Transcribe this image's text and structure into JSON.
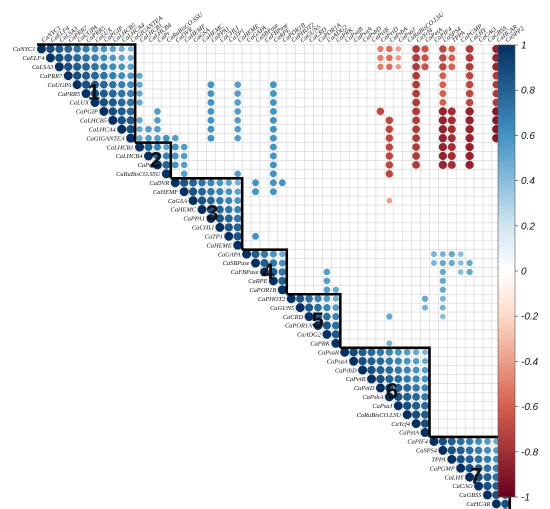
{
  "chart_data": {
    "type": "heatmap",
    "title": "",
    "xlabel": "",
    "ylabel": "",
    "genes": [
      "CaNYC1",
      "CaELF4",
      "CaLSA3",
      "CaPRR7",
      "CaUGPA",
      "CaPRR5",
      "CaLUX",
      "CaPGIP",
      "CaLHCB5",
      "CaLHCA4",
      "CaGIGANTEA",
      "CaLHCB1",
      "CaLHCB4",
      "CaPr",
      "CaRuBisCO.SSU",
      "CaDVR",
      "CaHEMF",
      "CaGSA",
      "CaHEMC",
      "CaPPA1",
      "CaCHLI",
      "CaTP1",
      "CaHEME",
      "CaGAPA",
      "CaSBPase",
      "CaFBPase",
      "CaRPE",
      "CaPOR1B",
      "CaPHOT2",
      "CaGUN5",
      "CaCRD",
      "CaPOR1A",
      "CaADG2",
      "CaPRK",
      "CaPsaB",
      "CaPsaA",
      "CaPsbD",
      "CaPetB",
      "CaPetD",
      "CaPsbA",
      "CaPsaJ",
      "CaRuBisCO.LSU",
      "CaYcf4",
      "CaPetA",
      "CaPIF4",
      "CaSPS4",
      "TPPA",
      "CaPGMP",
      "CaLHY",
      "CaCAO",
      "CaGBSS",
      "CaHCAR",
      "CaSPP2"
    ],
    "modules": [
      {
        "label": "1",
        "start": 1,
        "end": 11
      },
      {
        "label": "2",
        "start": 12,
        "end": 15
      },
      {
        "label": "3",
        "start": 16,
        "end": 23
      },
      {
        "label": "4",
        "start": 24,
        "end": 28
      },
      {
        "label": "5",
        "start": 29,
        "end": 34
      },
      {
        "label": "6",
        "start": 35,
        "end": 44
      },
      {
        "label": "7",
        "start": 45,
        "end": 53
      }
    ],
    "sparse_correlations": [
      [
        1,
        39,
        -0.5
      ],
      [
        1,
        40,
        -0.55
      ],
      [
        1,
        41,
        -0.4
      ],
      [
        1,
        43,
        -0.75
      ],
      [
        1,
        44,
        -0.65
      ],
      [
        1,
        46,
        -0.7
      ],
      [
        1,
        47,
        -0.6
      ],
      [
        1,
        49,
        -0.75
      ],
      [
        1,
        52,
        -0.85
      ],
      [
        2,
        39,
        -0.5
      ],
      [
        2,
        40,
        -0.55
      ],
      [
        2,
        41,
        -0.4
      ],
      [
        2,
        43,
        -0.75
      ],
      [
        2,
        44,
        -0.65
      ],
      [
        2,
        46,
        -0.7
      ],
      [
        2,
        47,
        -0.6
      ],
      [
        2,
        49,
        -0.75
      ],
      [
        2,
        52,
        -0.85
      ],
      [
        3,
        39,
        -0.5
      ],
      [
        3,
        40,
        -0.55
      ],
      [
        3,
        41,
        -0.4
      ],
      [
        3,
        43,
        -0.75
      ],
      [
        3,
        44,
        -0.65
      ],
      [
        3,
        46,
        -0.7
      ],
      [
        3,
        47,
        -0.6
      ],
      [
        3,
        49,
        -0.75
      ],
      [
        3,
        52,
        -0.85
      ],
      [
        4,
        12,
        0.5
      ],
      [
        4,
        43,
        -0.75
      ],
      [
        4,
        46,
        -0.6
      ],
      [
        4,
        49,
        -0.7
      ],
      [
        4,
        52,
        -0.75
      ],
      [
        5,
        12,
        0.5
      ],
      [
        5,
        20,
        0.6
      ],
      [
        5,
        23,
        0.55
      ],
      [
        5,
        27,
        0.6
      ],
      [
        5,
        43,
        -0.75
      ],
      [
        5,
        46,
        -0.6
      ],
      [
        5,
        49,
        -0.7
      ],
      [
        5,
        52,
        -0.75
      ],
      [
        6,
        12,
        0.5
      ],
      [
        6,
        20,
        0.6
      ],
      [
        6,
        23,
        0.55
      ],
      [
        6,
        27,
        0.6
      ],
      [
        6,
        43,
        -0.75
      ],
      [
        6,
        46,
        -0.6
      ],
      [
        6,
        49,
        -0.7
      ],
      [
        6,
        52,
        -0.75
      ],
      [
        7,
        12,
        0.5
      ],
      [
        7,
        20,
        0.6
      ],
      [
        7,
        23,
        0.55
      ],
      [
        7,
        27,
        0.6
      ],
      [
        7,
        43,
        -0.75
      ],
      [
        7,
        46,
        -0.6
      ],
      [
        7,
        49,
        -0.7
      ],
      [
        7,
        52,
        -0.75
      ],
      [
        8,
        14,
        0.55
      ],
      [
        8,
        20,
        0.6
      ],
      [
        8,
        23,
        0.55
      ],
      [
        8,
        27,
        0.6
      ],
      [
        8,
        39,
        -0.7
      ],
      [
        8,
        43,
        -0.75
      ],
      [
        8,
        46,
        -0.85
      ],
      [
        8,
        47,
        -0.8
      ],
      [
        8,
        49,
        -0.85
      ],
      [
        8,
        52,
        -0.9
      ],
      [
        9,
        12,
        0.5
      ],
      [
        9,
        14,
        0.55
      ],
      [
        9,
        20,
        0.6
      ],
      [
        9,
        23,
        0.55
      ],
      [
        9,
        27,
        0.6
      ],
      [
        9,
        40,
        -0.7
      ],
      [
        9,
        43,
        -0.75
      ],
      [
        9,
        46,
        -0.85
      ],
      [
        9,
        47,
        -0.8
      ],
      [
        9,
        49,
        -0.85
      ],
      [
        9,
        52,
        -0.9
      ],
      [
        10,
        12,
        0.5
      ],
      [
        10,
        13,
        0.55
      ],
      [
        10,
        14,
        0.55
      ],
      [
        10,
        20,
        0.6
      ],
      [
        10,
        23,
        0.55
      ],
      [
        10,
        27,
        0.6
      ],
      [
        10,
        40,
        -0.7
      ],
      [
        10,
        43,
        -0.75
      ],
      [
        10,
        46,
        -0.85
      ],
      [
        10,
        47,
        -0.8
      ],
      [
        10,
        49,
        -0.85
      ],
      [
        10,
        52,
        -0.9
      ],
      [
        11,
        12,
        0.5
      ],
      [
        11,
        13,
        0.55
      ],
      [
        11,
        14,
        0.55
      ],
      [
        11,
        15,
        0.6
      ],
      [
        11,
        16,
        0.55
      ],
      [
        11,
        20,
        0.6
      ],
      [
        11,
        23,
        0.55
      ],
      [
        11,
        27,
        0.6
      ],
      [
        11,
        40,
        -0.7
      ],
      [
        11,
        43,
        -0.75
      ],
      [
        11,
        46,
        -0.85
      ],
      [
        11,
        47,
        -0.8
      ],
      [
        11,
        49,
        -0.85
      ],
      [
        11,
        52,
        -0.9
      ],
      [
        12,
        16,
        0.6
      ],
      [
        12,
        17,
        0.55
      ],
      [
        12,
        27,
        0.6
      ],
      [
        12,
        40,
        -0.7
      ],
      [
        12,
        43,
        -0.75
      ],
      [
        12,
        46,
        -0.85
      ],
      [
        12,
        47,
        -0.8
      ],
      [
        12,
        49,
        -0.85
      ],
      [
        13,
        16,
        0.6
      ],
      [
        13,
        17,
        0.55
      ],
      [
        13,
        27,
        0.6
      ],
      [
        13,
        40,
        -0.7
      ],
      [
        13,
        43,
        -0.75
      ],
      [
        13,
        46,
        -0.85
      ],
      [
        13,
        47,
        -0.8
      ],
      [
        13,
        49,
        -0.85
      ],
      [
        14,
        16,
        0.6
      ],
      [
        14,
        17,
        0.55
      ],
      [
        14,
        27,
        0.6
      ],
      [
        14,
        40,
        -0.7
      ],
      [
        14,
        43,
        -0.75
      ],
      [
        14,
        46,
        -0.85
      ],
      [
        14,
        47,
        -0.8
      ],
      [
        14,
        49,
        -0.85
      ],
      [
        15,
        17,
        0.55
      ],
      [
        15,
        23,
        0.55
      ],
      [
        15,
        27,
        0.6
      ],
      [
        15,
        40,
        -0.7
      ],
      [
        16,
        25,
        0.6
      ],
      [
        16,
        27,
        0.6
      ],
      [
        16,
        28,
        0.6
      ],
      [
        17,
        25,
        0.6
      ],
      [
        17,
        27,
        0.6
      ],
      [
        18,
        40,
        -0.4
      ],
      [
        22,
        25,
        0.6
      ],
      [
        23,
        53,
        0.5
      ],
      [
        24,
        45,
        0.45
      ],
      [
        24,
        46,
        0.45
      ],
      [
        24,
        47,
        0.5
      ],
      [
        24,
        48,
        0.4
      ],
      [
        25,
        45,
        0.45
      ],
      [
        25,
        46,
        0.5
      ],
      [
        25,
        47,
        0.5
      ],
      [
        25,
        48,
        0.4
      ],
      [
        25,
        49,
        0.5
      ],
      [
        26,
        33,
        0.55
      ],
      [
        26,
        46,
        0.5
      ],
      [
        26,
        48,
        0.4
      ],
      [
        26,
        49,
        0.5
      ],
      [
        27,
        33,
        0.55
      ],
      [
        27,
        46,
        0.5
      ],
      [
        28,
        33,
        0.55
      ],
      [
        28,
        34,
        0.5
      ],
      [
        28,
        46,
        0.5
      ],
      [
        29,
        44,
        0.5
      ],
      [
        29,
        46,
        0.45
      ],
      [
        30,
        44,
        0.45
      ],
      [
        30,
        46,
        0.45
      ],
      [
        31,
        40,
        0.5
      ],
      [
        31,
        46,
        0.4
      ],
      [
        34,
        40,
        0.45
      ]
    ]
  }
}
